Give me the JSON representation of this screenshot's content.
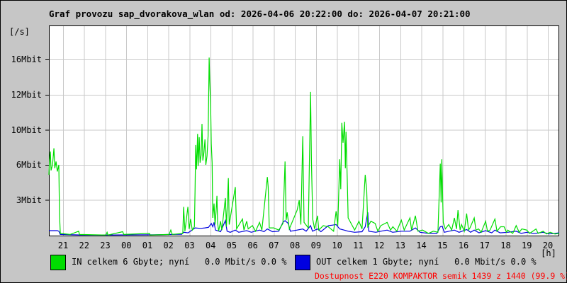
{
  "header": {
    "title": "Graf provozu sap_dvorakova_wlan od: 2026-04-06 20:22:00 do: 2026-04-07 20:21:00"
  },
  "legend": {
    "in_label": "IN celkem 6 Gbyte; nyní   0.0 Mbit/s 0.0 %",
    "out_label": "OUT celkem 1 Gbyte; nyní   0.0 Mbit/s 0.0 %",
    "availability": "Dostupnost E220 KOMPAKTOR semik 1439 z 1440 (99.9 %)"
  },
  "colors": {
    "in_series": "#00dd00",
    "out_series": "#0000e0",
    "availability_text": "#ff0000",
    "grid": "#c9c9c9",
    "plot_bg": "#ffffff",
    "frame": "#000000",
    "page_bg": "#c6c6c6"
  },
  "chart_data": {
    "type": "line",
    "title": "Graf provozu sap_dvorakova_wlan od: 2026-04-06 20:22:00 do: 2026-04-07 20:21:00",
    "x_axis": {
      "unit": "[h]",
      "start": "2026-04-06 20:22:00",
      "end": "2026-04-07 20:21:00",
      "tick_labels": [
        "21",
        "22",
        "23",
        "00",
        "01",
        "02",
        "03",
        "04",
        "05",
        "06",
        "07",
        "08",
        "09",
        "10",
        "11",
        "12",
        "13",
        "14",
        "15",
        "16",
        "17",
        "18",
        "19",
        "20"
      ],
      "span_hours": 24.2
    },
    "y_axis": {
      "unit": "[/s]",
      "tick_labels": [
        "16Mbit",
        "12Mbit",
        "10Mbit",
        "6Mbit",
        "3Mbit"
      ],
      "max_mbit": 19.0,
      "grid": true
    },
    "t_unit": "hours since plot start (20:22)",
    "v_unit": "Mbit/s",
    "series": [
      {
        "name": "OUT",
        "color": "#0000e0",
        "points": [
          [
            0,
            0.45
          ],
          [
            0.4,
            0.45
          ],
          [
            0.47,
            0.4
          ],
          [
            0.54,
            0.1
          ],
          [
            1.5,
            0.06
          ],
          [
            3,
            0.06
          ],
          [
            5,
            0.08
          ],
          [
            6.3,
            0.12
          ],
          [
            6.39,
            0.3
          ],
          [
            6.6,
            0.25
          ],
          [
            6.93,
            0.7
          ],
          [
            7.2,
            0.65
          ],
          [
            7.4,
            0.7
          ],
          [
            7.57,
            0.75
          ],
          [
            7.7,
            1.1
          ],
          [
            7.77,
            0.8
          ],
          [
            7.83,
            1.2
          ],
          [
            7.9,
            0.5
          ],
          [
            8.14,
            0.35
          ],
          [
            8.37,
            1.35
          ],
          [
            8.45,
            0.4
          ],
          [
            8.6,
            0.3
          ],
          [
            8.84,
            0.5
          ],
          [
            9,
            0.3
          ],
          [
            9.38,
            0.45
          ],
          [
            9.6,
            0.3
          ],
          [
            9.99,
            0.5
          ],
          [
            10.2,
            0.35
          ],
          [
            10.36,
            0.6
          ],
          [
            10.6,
            0.35
          ],
          [
            10.9,
            0.4
          ],
          [
            11.1,
            1.2
          ],
          [
            11.2,
            1.35
          ],
          [
            11.35,
            1.1
          ],
          [
            11.45,
            0.4
          ],
          [
            11.77,
            0.5
          ],
          [
            12.04,
            0.6
          ],
          [
            12.2,
            0.4
          ],
          [
            12.41,
            0.9
          ],
          [
            12.5,
            0.4
          ],
          [
            12.74,
            0.6
          ],
          [
            12.9,
            0.35
          ],
          [
            13.25,
            0.9
          ],
          [
            13.45,
            0.95
          ],
          [
            13.62,
            1.0
          ],
          [
            13.79,
            0.6
          ],
          [
            14,
            0.5
          ],
          [
            14.19,
            0.4
          ],
          [
            14.5,
            0.3
          ],
          [
            14.85,
            0.35
          ],
          [
            15,
            0.8
          ],
          [
            15.12,
            2.1
          ],
          [
            15.17,
            0.4
          ],
          [
            15.5,
            0.3
          ],
          [
            15.74,
            0.4
          ],
          [
            16.04,
            0.5
          ],
          [
            16.3,
            0.3
          ],
          [
            16.71,
            0.4
          ],
          [
            17.12,
            0.4
          ],
          [
            17.38,
            0.7
          ],
          [
            17.6,
            0.3
          ],
          [
            18,
            0.2
          ],
          [
            18.4,
            0.2
          ],
          [
            18.56,
            0.8
          ],
          [
            18.65,
            0.85
          ],
          [
            18.75,
            0.3
          ],
          [
            19.23,
            0.5
          ],
          [
            19.45,
            0.3
          ],
          [
            19.81,
            0.55
          ],
          [
            20,
            0.3
          ],
          [
            20.17,
            0.5
          ],
          [
            20.4,
            0.25
          ],
          [
            20.71,
            0.45
          ],
          [
            21,
            0.25
          ],
          [
            21.15,
            0.5
          ],
          [
            21.4,
            0.25
          ],
          [
            21.76,
            0.3
          ],
          [
            22.16,
            0.4
          ],
          [
            22.4,
            0.2
          ],
          [
            22.66,
            0.3
          ],
          [
            23,
            0.18
          ],
          [
            23.44,
            0.3
          ],
          [
            23.7,
            0.15
          ],
          [
            24,
            0.2
          ],
          [
            24.2,
            0.25
          ]
        ]
      },
      {
        "name": "IN",
        "color": "#00dd00",
        "points": [
          [
            0,
            5.5
          ],
          [
            0.03,
            6.8
          ],
          [
            0.07,
            7.6
          ],
          [
            0.1,
            5.9
          ],
          [
            0.17,
            6.4
          ],
          [
            0.24,
            7.9
          ],
          [
            0.28,
            6.1
          ],
          [
            0.34,
            6.7
          ],
          [
            0.4,
            5.8
          ],
          [
            0.47,
            6.4
          ],
          [
            0.5,
            2.0
          ],
          [
            0.54,
            0.2
          ],
          [
            1.0,
            0.1
          ],
          [
            1.41,
            0.4
          ],
          [
            1.45,
            0.1
          ],
          [
            2.7,
            0.05
          ],
          [
            2.76,
            0.3
          ],
          [
            2.8,
            0.05
          ],
          [
            3.5,
            0.35
          ],
          [
            3.55,
            0.1
          ],
          [
            4.77,
            0.2
          ],
          [
            4.8,
            0.05
          ],
          [
            5.7,
            0.1
          ],
          [
            5.78,
            0.5
          ],
          [
            5.85,
            0.1
          ],
          [
            6.35,
            0.2
          ],
          [
            6.39,
            2.6
          ],
          [
            6.45,
            0.4
          ],
          [
            6.59,
            2.6
          ],
          [
            6.65,
            0.6
          ],
          [
            6.72,
            1.5
          ],
          [
            6.8,
            0.5
          ],
          [
            6.9,
            0.8
          ],
          [
            6.93,
            4.0
          ],
          [
            6.96,
            8.2
          ],
          [
            7.0,
            6.0
          ],
          [
            7.05,
            9.2
          ],
          [
            7.08,
            6.3
          ],
          [
            7.13,
            8.9
          ],
          [
            7.17,
            6.6
          ],
          [
            7.22,
            7.3
          ],
          [
            7.26,
            10.1
          ],
          [
            7.3,
            6.8
          ],
          [
            7.35,
            7.5
          ],
          [
            7.4,
            8.7
          ],
          [
            7.44,
            6.4
          ],
          [
            7.5,
            7.2
          ],
          [
            7.55,
            9.0
          ],
          [
            7.57,
            11.5
          ],
          [
            7.6,
            16.1
          ],
          [
            7.63,
            14.0
          ],
          [
            7.67,
            11.8
          ],
          [
            7.7,
            8.3
          ],
          [
            7.74,
            6.6
          ],
          [
            7.77,
            1.6
          ],
          [
            7.83,
            2.9
          ],
          [
            7.88,
            1.0
          ],
          [
            7.93,
            2.2
          ],
          [
            7.97,
            3.6
          ],
          [
            8.0,
            1.2
          ],
          [
            8.05,
            0.4
          ],
          [
            8.14,
            1.3
          ],
          [
            8.2,
            0.5
          ],
          [
            8.37,
            3.4
          ],
          [
            8.42,
            0.8
          ],
          [
            8.51,
            5.2
          ],
          [
            8.55,
            1.0
          ],
          [
            8.84,
            4.4
          ],
          [
            8.9,
            0.6
          ],
          [
            9.18,
            1.5
          ],
          [
            9.25,
            0.5
          ],
          [
            9.38,
            1.3
          ],
          [
            9.45,
            0.6
          ],
          [
            9.65,
            0.9
          ],
          [
            9.8,
            0.4
          ],
          [
            9.99,
            1.2
          ],
          [
            10.1,
            0.5
          ],
          [
            10.36,
            5.3
          ],
          [
            10.4,
            4.4
          ],
          [
            10.45,
            0.7
          ],
          [
            10.66,
            0.7
          ],
          [
            10.9,
            0.5
          ],
          [
            11.1,
            1.1
          ],
          [
            11.2,
            6.7
          ],
          [
            11.25,
            1.4
          ],
          [
            11.3,
            2.1
          ],
          [
            11.4,
            0.6
          ],
          [
            11.77,
            2.3
          ],
          [
            11.87,
            3.2
          ],
          [
            11.95,
            1.0
          ],
          [
            12.04,
            9.0
          ],
          [
            12.1,
            1.2
          ],
          [
            12.3,
            0.7
          ],
          [
            12.41,
            13.0
          ],
          [
            12.45,
            6.8
          ],
          [
            12.51,
            1.5
          ],
          [
            12.6,
            0.6
          ],
          [
            12.74,
            1.8
          ],
          [
            12.8,
            0.5
          ],
          [
            13.01,
            0.9
          ],
          [
            13.25,
            0.8
          ],
          [
            13.5,
            0.4
          ],
          [
            13.62,
            2.2
          ],
          [
            13.7,
            0.9
          ],
          [
            13.79,
            6.9
          ],
          [
            13.84,
            4.2
          ],
          [
            13.89,
            10.2
          ],
          [
            13.95,
            8.4
          ],
          [
            14.02,
            10.3
          ],
          [
            14.06,
            6.1
          ],
          [
            14.09,
            9.4
          ],
          [
            14.15,
            5.0
          ],
          [
            14.19,
            1.6
          ],
          [
            14.36,
            1.0
          ],
          [
            14.5,
            0.5
          ],
          [
            14.7,
            1.3
          ],
          [
            14.85,
            0.6
          ],
          [
            15.0,
            5.5
          ],
          [
            15.07,
            4.1
          ],
          [
            15.12,
            0.8
          ],
          [
            15.27,
            1.3
          ],
          [
            15.47,
            1.1
          ],
          [
            15.6,
            0.4
          ],
          [
            15.74,
            0.9
          ],
          [
            16.04,
            1.2
          ],
          [
            16.2,
            0.5
          ],
          [
            16.31,
            0.8
          ],
          [
            16.5,
            0.4
          ],
          [
            16.71,
            1.4
          ],
          [
            16.85,
            0.5
          ],
          [
            17.12,
            1.6
          ],
          [
            17.2,
            0.5
          ],
          [
            17.38,
            1.8
          ],
          [
            17.5,
            0.4
          ],
          [
            17.72,
            0.5
          ],
          [
            18.0,
            0.2
          ],
          [
            18.23,
            0.4
          ],
          [
            18.45,
            0.3
          ],
          [
            18.56,
            6.5
          ],
          [
            18.6,
            3.0
          ],
          [
            18.63,
            6.9
          ],
          [
            18.7,
            1.2
          ],
          [
            18.8,
            0.6
          ],
          [
            18.96,
            1.0
          ],
          [
            19.1,
            0.5
          ],
          [
            19.23,
            1.6
          ],
          [
            19.33,
            0.6
          ],
          [
            19.4,
            2.3
          ],
          [
            19.5,
            0.5
          ],
          [
            19.57,
            1.0
          ],
          [
            19.7,
            0.4
          ],
          [
            19.81,
            2.0
          ],
          [
            19.9,
            0.5
          ],
          [
            19.97,
            0.7
          ],
          [
            20.17,
            1.6
          ],
          [
            20.25,
            0.5
          ],
          [
            20.38,
            0.6
          ],
          [
            20.5,
            0.3
          ],
          [
            20.71,
            1.3
          ],
          [
            20.8,
            0.4
          ],
          [
            20.92,
            0.5
          ],
          [
            21.15,
            1.5
          ],
          [
            21.25,
            0.4
          ],
          [
            21.42,
            0.8
          ],
          [
            21.59,
            0.8
          ],
          [
            21.7,
            0.3
          ],
          [
            21.76,
            0.5
          ],
          [
            22.0,
            0.2
          ],
          [
            22.16,
            0.9
          ],
          [
            22.3,
            0.3
          ],
          [
            22.43,
            0.6
          ],
          [
            22.66,
            0.5
          ],
          [
            22.8,
            0.2
          ],
          [
            23.1,
            0.6
          ],
          [
            23.2,
            0.2
          ],
          [
            23.44,
            0.4
          ],
          [
            23.6,
            0.15
          ],
          [
            23.77,
            0.3
          ],
          [
            24.0,
            0.15
          ],
          [
            24.2,
            0.2
          ]
        ]
      }
    ],
    "legend_position": "bottom"
  }
}
